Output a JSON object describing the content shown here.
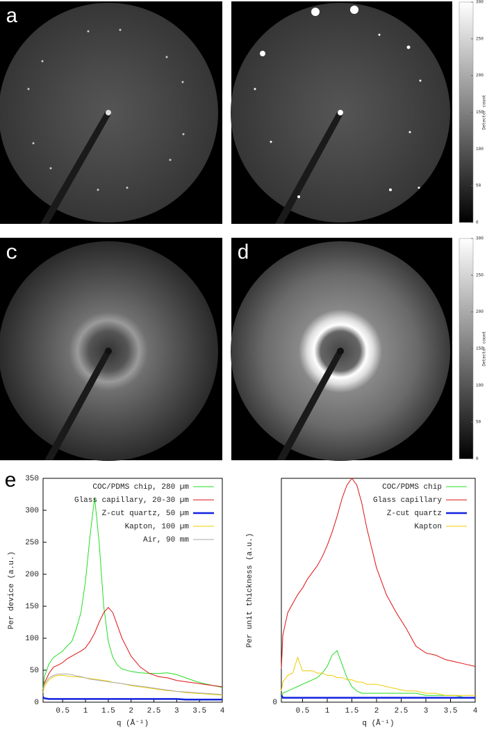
{
  "panel_labels": [
    "a",
    "c",
    "d",
    "e"
  ],
  "chart_data": [
    {
      "type": "colorbar",
      "label": "Detector count",
      "ylim": [
        0,
        300
      ],
      "yticks": [
        0,
        50,
        100,
        150,
        200,
        250,
        300
      ]
    },
    {
      "type": "colorbar",
      "label": "Detector count",
      "ylim": [
        0,
        300
      ],
      "yticks": [
        0,
        50,
        100,
        150,
        200,
        250,
        300
      ]
    },
    {
      "type": "line",
      "xlabel": "q (Å⁻¹)",
      "ylabel": "Per device (a.u.)",
      "legend": "upper right",
      "xlim": [
        0.07,
        4
      ],
      "xticks": [
        0.5,
        1,
        1.5,
        2,
        2.5,
        3,
        3.5,
        4
      ],
      "ylim": [
        0,
        350
      ],
      "yticks": [
        0,
        50,
        100,
        150,
        200,
        250,
        300,
        350
      ],
      "x": [
        0.07,
        0.1,
        0.2,
        0.3,
        0.4,
        0.5,
        0.6,
        0.7,
        0.8,
        0.9,
        1.0,
        1.1,
        1.2,
        1.3,
        1.4,
        1.5,
        1.6,
        1.7,
        1.8,
        2.0,
        2.2,
        2.4,
        2.6,
        2.8,
        3.0,
        3.2,
        3.4,
        3.6,
        3.8,
        4.0
      ],
      "series": [
        {
          "name": "COC/PDMS chip, 280 µm",
          "color": "#22dd22",
          "width": 1,
          "values": [
            20,
            40,
            60,
            70,
            75,
            80,
            88,
            95,
            115,
            140,
            190,
            260,
            320,
            250,
            150,
            95,
            70,
            58,
            52,
            48,
            46,
            45,
            45,
            46,
            43,
            38,
            33,
            29,
            26,
            23
          ]
        },
        {
          "name": "Glass capillary, 20-30 µm",
          "color": "#dd1111",
          "width": 1,
          "values": [
            20,
            30,
            45,
            55,
            58,
            62,
            68,
            72,
            76,
            80,
            85,
            95,
            108,
            125,
            140,
            148,
            140,
            120,
            100,
            72,
            55,
            45,
            40,
            38,
            34,
            32,
            30,
            28,
            26,
            24
          ]
        },
        {
          "name": "Z-cut quartz, 50 µm",
          "color": "#1122dd",
          "width": 2.5,
          "values": [
            8,
            6,
            5,
            5,
            5,
            5,
            5,
            5,
            5,
            5,
            5,
            5,
            5,
            5,
            5,
            5,
            5,
            5,
            5,
            5,
            5,
            5,
            5,
            5,
            5,
            4,
            4,
            4,
            4,
            4
          ]
        },
        {
          "name": "Kapton, 100 µm",
          "color": "#eecc00",
          "width": 1,
          "values": [
            15,
            25,
            35,
            40,
            42,
            42,
            41,
            40,
            40,
            39,
            38,
            37,
            36,
            35,
            34,
            33,
            31,
            30,
            29,
            26,
            24,
            22,
            20,
            18,
            17,
            15,
            14,
            13,
            12,
            11
          ]
        },
        {
          "name": "Air, 90 mm",
          "color": "#aaaaaa",
          "width": 1,
          "values": [
            20,
            28,
            38,
            42,
            44,
            44,
            44,
            43,
            41,
            40,
            38,
            36,
            35,
            34,
            33,
            32,
            31,
            30,
            29,
            27,
            25,
            23,
            21,
            19,
            17,
            16,
            15,
            14,
            13,
            12
          ]
        }
      ]
    },
    {
      "type": "line",
      "xlabel": "q (Å⁻¹)",
      "ylabel": "Per unit thickness (a.u.)",
      "legend": "upper right",
      "xlim": [
        0.07,
        4
      ],
      "xticks": [
        0.5,
        1,
        1.5,
        2,
        2.5,
        3,
        3.5,
        4
      ],
      "ylim": [
        0,
        100
      ],
      "yticks": [
        0
      ],
      "x": [
        0.07,
        0.1,
        0.2,
        0.3,
        0.4,
        0.5,
        0.6,
        0.7,
        0.8,
        0.9,
        1.0,
        1.1,
        1.2,
        1.3,
        1.4,
        1.5,
        1.6,
        1.7,
        1.8,
        2.0,
        2.2,
        2.4,
        2.6,
        2.8,
        3.0,
        3.2,
        3.4,
        3.6,
        3.8,
        4.0
      ],
      "series": [
        {
          "name": "COC/PDMS chip",
          "color": "#22dd22",
          "width": 1,
          "values": [
            2,
            4,
            5,
            6,
            7,
            8,
            9,
            10,
            11,
            13,
            16,
            21,
            23,
            17,
            11,
            7,
            5,
            4,
            4,
            4,
            4,
            4,
            4,
            4,
            3,
            3,
            3,
            3,
            2,
            2
          ]
        },
        {
          "name": "Glass capillary",
          "color": "#dd1111",
          "width": 1,
          "values": [
            15,
            30,
            40,
            44,
            48,
            51,
            55,
            58,
            61,
            65,
            70,
            76,
            83,
            91,
            97,
            100,
            97,
            89,
            78,
            60,
            48,
            40,
            33,
            25,
            22,
            21,
            19,
            18,
            17,
            16
          ]
        },
        {
          "name": "Z-cut quartz",
          "color": "#1122dd",
          "width": 2.5,
          "values": [
            3,
            2,
            2,
            2,
            2,
            2,
            2,
            2,
            2,
            2,
            2,
            2,
            2,
            2,
            2,
            2,
            2,
            2,
            2,
            2,
            2,
            2,
            2,
            2,
            2,
            2,
            2,
            2,
            2,
            2
          ]
        },
        {
          "name": "Kapton",
          "color": "#eecc00",
          "width": 1,
          "values": [
            5,
            9,
            12,
            13,
            20,
            14,
            14,
            14,
            13,
            13,
            12,
            12,
            11,
            11,
            10,
            10,
            9,
            9,
            8,
            8,
            7,
            6,
            5,
            5,
            4,
            4,
            3,
            3,
            3,
            3
          ]
        }
      ]
    }
  ]
}
